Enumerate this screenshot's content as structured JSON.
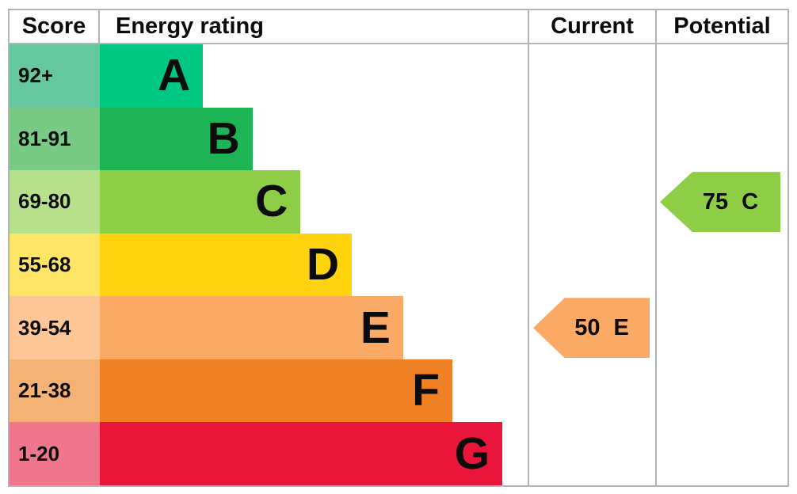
{
  "header": {
    "score_label": "Score",
    "energy_rating_label": "Energy rating",
    "current_label": "Current",
    "potential_label": "Potential"
  },
  "bands": [
    {
      "score": "92+",
      "letter": "A",
      "bar_color": "#00c781",
      "score_bg": "#65c79e",
      "width_pct": 24.1
    },
    {
      "score": "81-91",
      "letter": "B",
      "bar_color": "#1cb454",
      "score_bg": "#78ca84",
      "width_pct": 35.7
    },
    {
      "score": "69-80",
      "letter": "C",
      "bar_color": "#8dce46",
      "score_bg": "#b6e08b",
      "width_pct": 46.9
    },
    {
      "score": "55-68",
      "letter": "D",
      "bar_color": "#ffd30e",
      "score_bg": "#ffe566",
      "width_pct": 58.9
    },
    {
      "score": "39-54",
      "letter": "E",
      "bar_color": "#fbaa65",
      "score_bg": "#fdc697",
      "width_pct": 70.9
    },
    {
      "score": "21-38",
      "letter": "F",
      "bar_color": "#ef8023",
      "score_bg": "#f4b274",
      "width_pct": 82.4
    },
    {
      "score": "1-20",
      "letter": "G",
      "bar_color": "#e9153b",
      "score_bg": "#f0768c",
      "width_pct": 94.1
    }
  ],
  "current": {
    "value": "50",
    "letter": "E",
    "band_index": 4,
    "arrow_color": "#fbaa65"
  },
  "potential": {
    "value": "75",
    "letter": "C",
    "band_index": 2,
    "arrow_color": "#8dce46"
  },
  "chart_data": {
    "type": "bar",
    "title": "Energy rating",
    "columns": [
      "Score",
      "Energy rating",
      "Current",
      "Potential"
    ],
    "categories": [
      "A",
      "B",
      "C",
      "D",
      "E",
      "F",
      "G"
    ],
    "score_ranges": [
      "92+",
      "81-91",
      "69-80",
      "55-68",
      "39-54",
      "21-38",
      "1-20"
    ],
    "bar_length_pct": [
      24.1,
      35.7,
      46.9,
      58.9,
      70.9,
      82.4,
      94.1
    ],
    "band_colors": [
      "#00c781",
      "#1cb454",
      "#8dce46",
      "#ffd30e",
      "#fbaa65",
      "#ef8023",
      "#e9153b"
    ],
    "score_tint_colors": [
      "#65c79e",
      "#78ca84",
      "#b6e08b",
      "#ffe566",
      "#fdc697",
      "#f4b274",
      "#f0768c"
    ],
    "current": {
      "score": 50,
      "rating": "E"
    },
    "potential": {
      "score": 75,
      "rating": "C"
    },
    "legend_position": "none",
    "grid": false
  }
}
